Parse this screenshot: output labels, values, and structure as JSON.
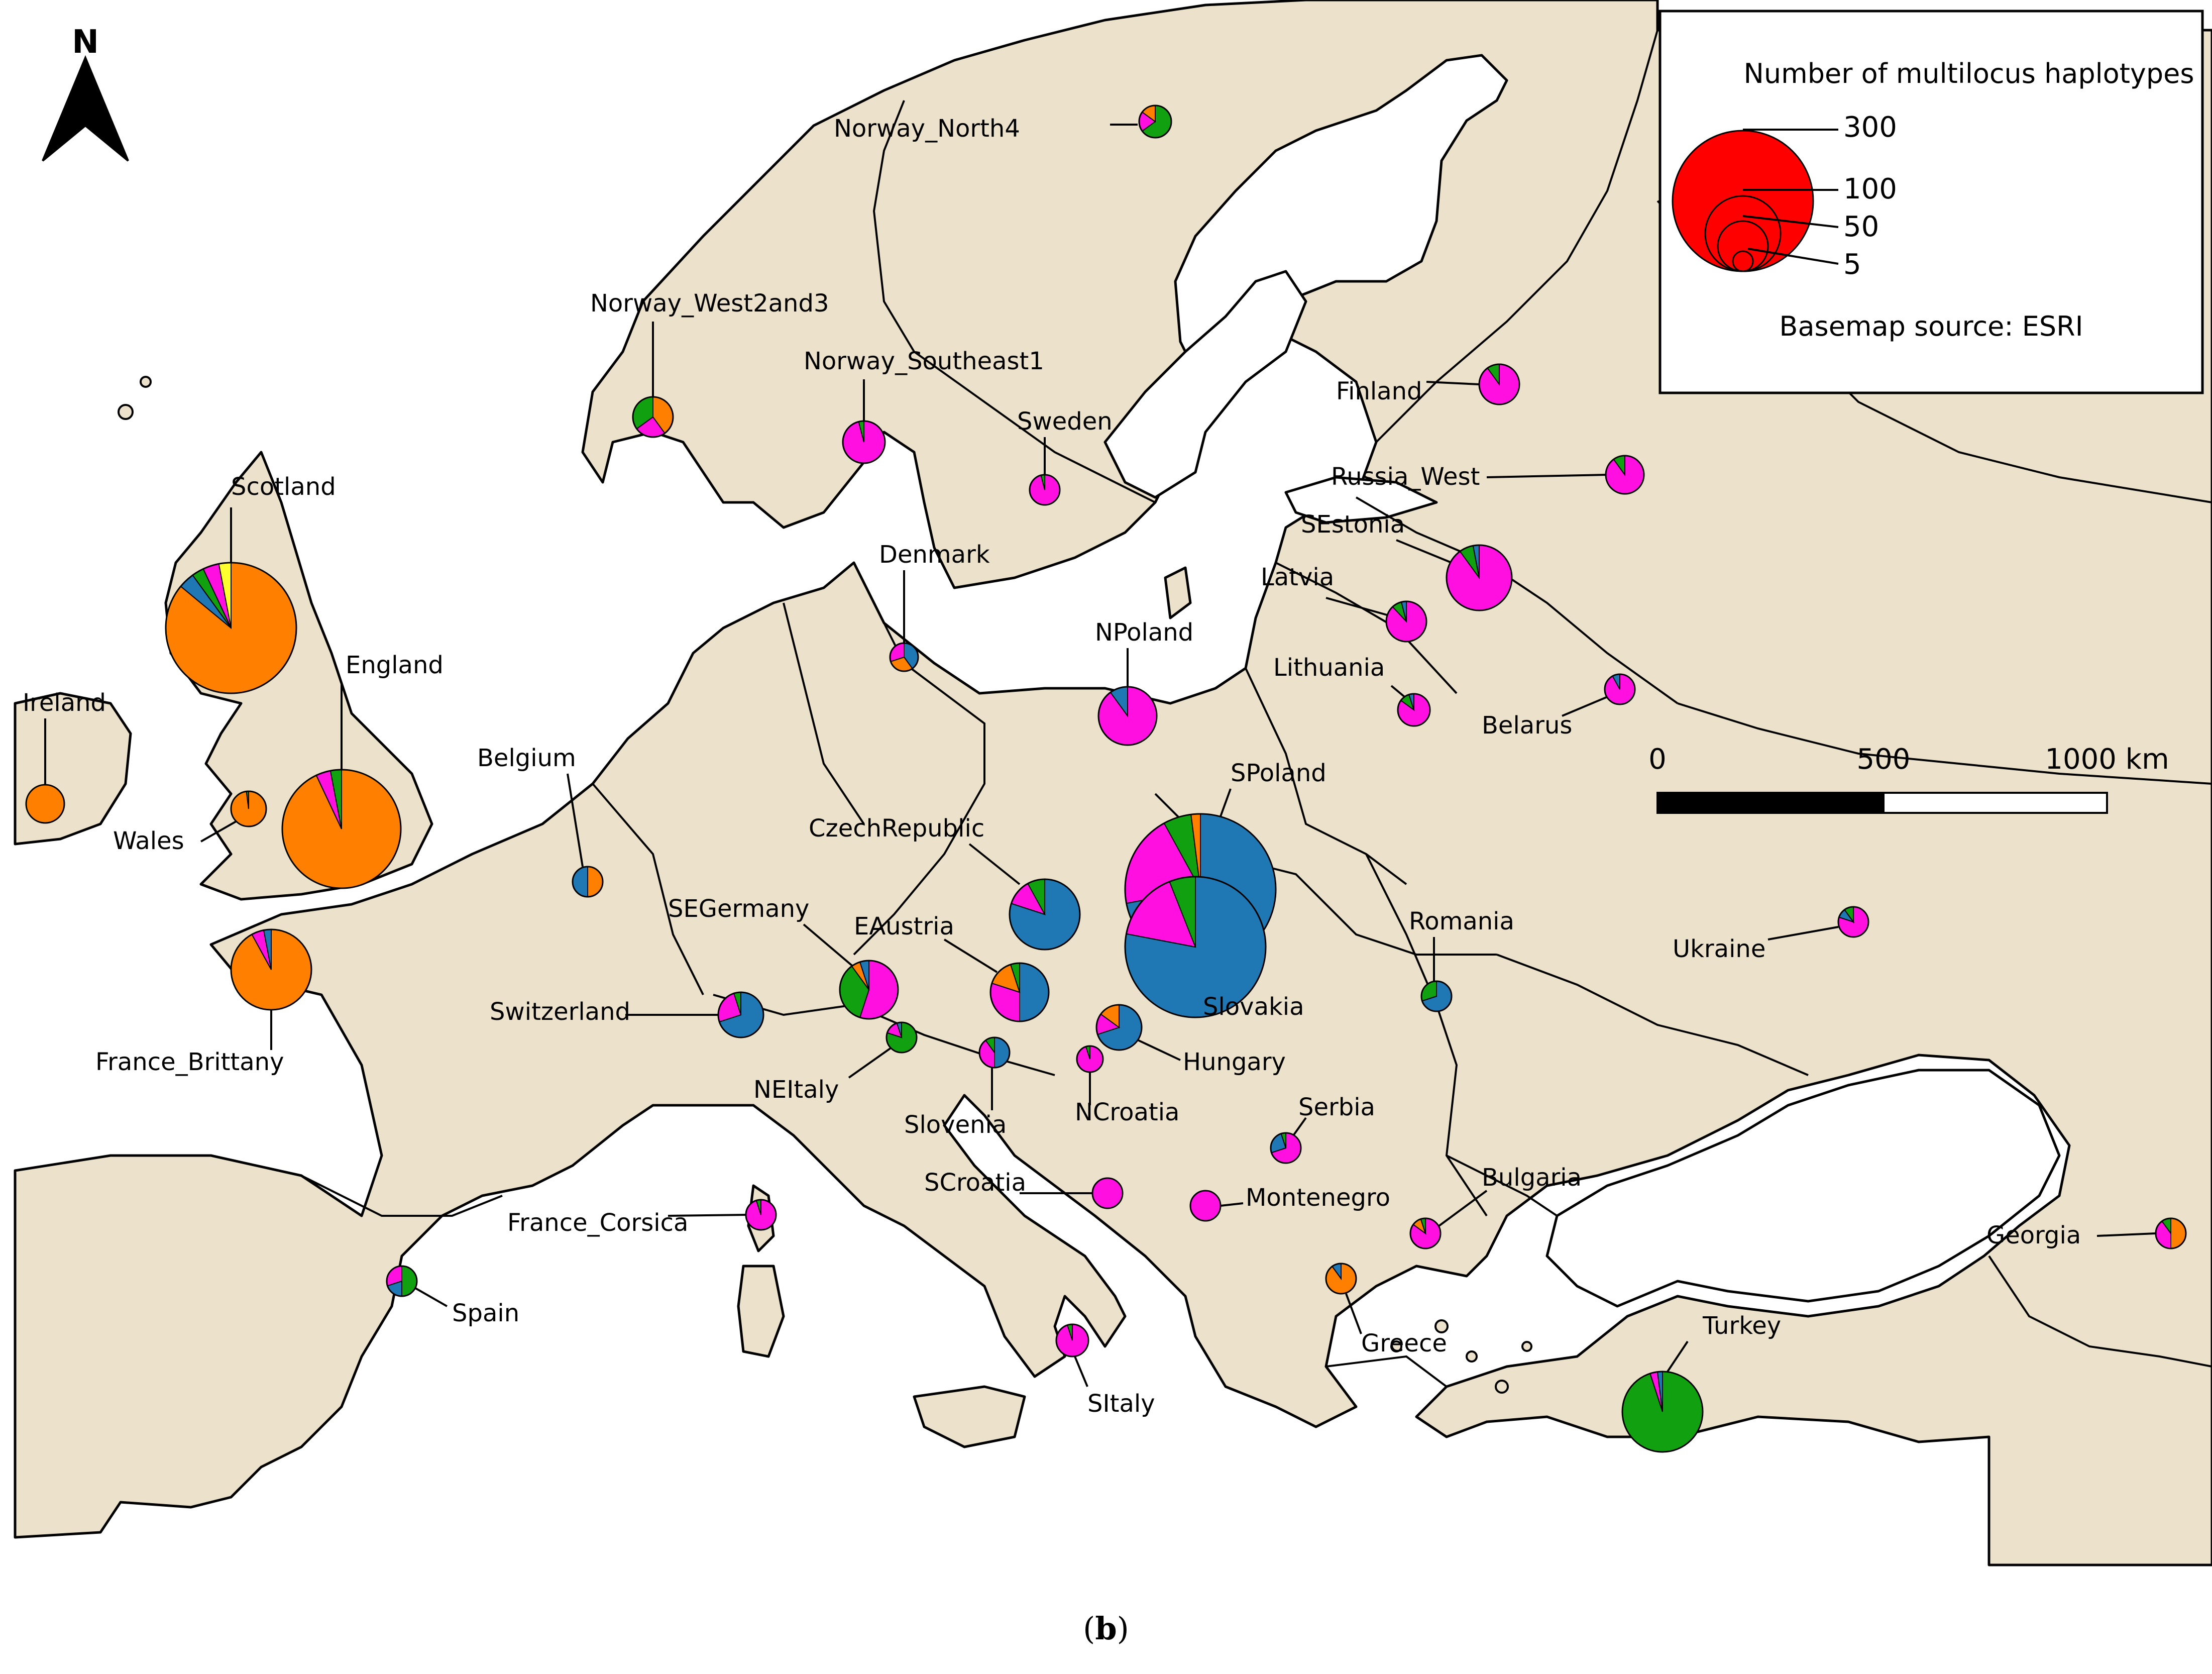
{
  "colors": {
    "land": "#ece2cc",
    "sea": "#ffffff",
    "border": "#000000",
    "orange": "#ff8000",
    "blue": "#1f77b4",
    "green": "#10a010",
    "magenta": "#ff10e0",
    "yellow": "#ffff30",
    "legend_circle": "#ff0000"
  },
  "north_arrow_label": "N",
  "caption": {
    "open": "(",
    "letter": "b",
    "close": ")"
  },
  "legend": {
    "title": "Number of multilocus haplotypes",
    "sizes": [
      "300",
      "100",
      "50",
      "5"
    ],
    "source": "Basemap source: ESRI"
  },
  "scale_bar": {
    "labels": [
      "0",
      "500",
      "1000 km"
    ]
  },
  "populations": [
    {
      "label": "Norway_North4",
      "slices": [
        [
          "green",
          0.65
        ],
        [
          "magenta",
          0.2
        ],
        [
          "orange",
          0.15
        ]
      ]
    },
    {
      "label": "Norway_West2and3",
      "slices": [
        [
          "orange",
          0.4
        ],
        [
          "magenta",
          0.25
        ],
        [
          "green",
          0.35
        ]
      ]
    },
    {
      "label": "Norway_Southeast1",
      "slices": [
        [
          "magenta",
          0.96
        ],
        [
          "green",
          0.04
        ]
      ]
    },
    {
      "label": "Sweden",
      "slices": [
        [
          "magenta",
          0.96
        ],
        [
          "green",
          0.04
        ]
      ]
    },
    {
      "label": "Finland",
      "slices": [
        [
          "magenta",
          0.9
        ],
        [
          "green",
          0.1
        ]
      ]
    },
    {
      "label": "Russia_West",
      "slices": [
        [
          "magenta",
          0.9
        ],
        [
          "green",
          0.1
        ]
      ]
    },
    {
      "label": "SEstonia",
      "slices": [
        [
          "magenta",
          0.9
        ],
        [
          "green",
          0.07
        ],
        [
          "blue",
          0.03
        ]
      ]
    },
    {
      "label": "Latvia",
      "slices": [
        [
          "magenta",
          0.88
        ],
        [
          "green",
          0.08
        ],
        [
          "blue",
          0.04
        ]
      ]
    },
    {
      "label": "Lithuania",
      "slices": [
        [
          "magenta",
          0.85
        ],
        [
          "green",
          0.1
        ],
        [
          "blue",
          0.05
        ]
      ]
    },
    {
      "label": "Belarus",
      "slices": [
        [
          "magenta",
          0.92
        ],
        [
          "blue",
          0.08
        ]
      ]
    },
    {
      "label": "Scotland",
      "slices": [
        [
          "orange",
          0.86
        ],
        [
          "blue",
          0.04
        ],
        [
          "green",
          0.03
        ],
        [
          "magenta",
          0.04
        ],
        [
          "yellow",
          0.03
        ]
      ]
    },
    {
      "label": "England",
      "slices": [
        [
          "orange",
          0.93
        ],
        [
          "magenta",
          0.04
        ],
        [
          "green",
          0.03
        ]
      ]
    },
    {
      "label": "Ireland",
      "slices": [
        [
          "orange",
          1.0
        ]
      ]
    },
    {
      "label": "Wales",
      "slices": [
        [
          "orange",
          0.98
        ],
        [
          "green",
          0.02
        ]
      ]
    },
    {
      "label": "Denmark",
      "slices": [
        [
          "blue",
          0.4
        ],
        [
          "orange",
          0.3
        ],
        [
          "magenta",
          0.3
        ]
      ]
    },
    {
      "label": "NPoland",
      "slices": [
        [
          "magenta",
          0.9
        ],
        [
          "blue",
          0.1
        ]
      ]
    },
    {
      "label": "Belgium",
      "slices": [
        [
          "orange",
          0.5
        ],
        [
          "blue",
          0.5
        ]
      ]
    },
    {
      "label": "CzechRepublic",
      "slices": [
        [
          "blue",
          0.8
        ],
        [
          "magenta",
          0.12
        ],
        [
          "green",
          0.08
        ]
      ]
    },
    {
      "label": "SPoland",
      "slices": [
        [
          "blue",
          0.72
        ],
        [
          "magenta",
          0.2
        ],
        [
          "green",
          0.06
        ],
        [
          "orange",
          0.02
        ]
      ]
    },
    {
      "label": "Slovakia",
      "slices": [
        [
          "blue",
          0.78
        ],
        [
          "magenta",
          0.16
        ],
        [
          "green",
          0.06
        ]
      ]
    },
    {
      "label": "SEGermany",
      "slices": [
        [
          "magenta",
          0.55
        ],
        [
          "green",
          0.35
        ],
        [
          "orange",
          0.05
        ],
        [
          "blue",
          0.05
        ]
      ]
    },
    {
      "label": "EAustria",
      "slices": [
        [
          "blue",
          0.5
        ],
        [
          "magenta",
          0.3
        ],
        [
          "orange",
          0.15
        ],
        [
          "green",
          0.05
        ]
      ]
    },
    {
      "label": "France_Brittany",
      "slices": [
        [
          "orange",
          0.92
        ],
        [
          "magenta",
          0.05
        ],
        [
          "blue",
          0.03
        ]
      ]
    },
    {
      "label": "Switzerland",
      "slices": [
        [
          "blue",
          0.7
        ],
        [
          "magenta",
          0.25
        ],
        [
          "green",
          0.05
        ]
      ]
    },
    {
      "label": "NEItaly",
      "slices": [
        [
          "green",
          0.8
        ],
        [
          "magenta",
          0.15
        ],
        [
          "blue",
          0.05
        ]
      ]
    },
    {
      "label": "Slovenia",
      "slices": [
        [
          "blue",
          0.5
        ],
        [
          "magenta",
          0.4
        ],
        [
          "green",
          0.1
        ]
      ]
    },
    {
      "label": "Hungary",
      "slices": [
        [
          "blue",
          0.7
        ],
        [
          "magenta",
          0.15
        ],
        [
          "orange",
          0.15
        ]
      ]
    },
    {
      "label": "NCroatia",
      "slices": [
        [
          "magenta",
          0.95
        ],
        [
          "green",
          0.05
        ]
      ]
    },
    {
      "label": "Romania",
      "slices": [
        [
          "blue",
          0.7
        ],
        [
          "green",
          0.3
        ]
      ]
    },
    {
      "label": "Ukraine",
      "slices": [
        [
          "magenta",
          0.8
        ],
        [
          "blue",
          0.1
        ],
        [
          "green",
          0.1
        ]
      ]
    },
    {
      "label": "Serbia",
      "slices": [
        [
          "magenta",
          0.7
        ],
        [
          "blue",
          0.25
        ],
        [
          "green",
          0.05
        ]
      ]
    },
    {
      "label": "SCroatia",
      "slices": [
        [
          "magenta",
          1.0
        ]
      ]
    },
    {
      "label": "Montenegro",
      "slices": [
        [
          "magenta",
          1.0
        ]
      ]
    },
    {
      "label": "Bulgaria",
      "slices": [
        [
          "magenta",
          0.85
        ],
        [
          "orange",
          0.1
        ],
        [
          "green",
          0.05
        ]
      ]
    },
    {
      "label": "France_Corsica",
      "slices": [
        [
          "magenta",
          0.95
        ],
        [
          "green",
          0.05
        ]
      ]
    },
    {
      "label": "Spain",
      "slices": [
        [
          "green",
          0.5
        ],
        [
          "blue",
          0.2
        ],
        [
          "magenta",
          0.3
        ]
      ]
    },
    {
      "label": "Georgia",
      "slices": [
        [
          "orange",
          0.5
        ],
        [
          "magenta",
          0.4
        ],
        [
          "green",
          0.1
        ]
      ]
    },
    {
      "label": "Greece",
      "slices": [
        [
          "orange",
          0.9
        ],
        [
          "blue",
          0.1
        ]
      ]
    },
    {
      "label": "SItaly",
      "slices": [
        [
          "magenta",
          0.95
        ],
        [
          "green",
          0.05
        ]
      ]
    },
    {
      "label": "Turkey",
      "slices": [
        [
          "green",
          0.95
        ],
        [
          "magenta",
          0.03
        ],
        [
          "blue",
          0.02
        ]
      ]
    }
  ]
}
